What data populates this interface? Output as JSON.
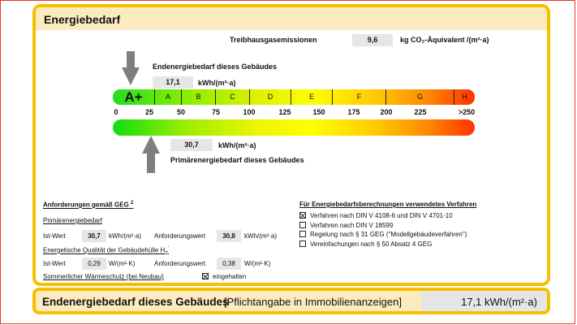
{
  "title": "Energiebedarf",
  "ghg": {
    "label": "Treibhausgasemissionen",
    "value": "9,6",
    "unit": "kg CO₂-Äquivalent /(m²·a)"
  },
  "end": {
    "label": "Endenergiebedarf dieses Gebäudes",
    "value": "17,1",
    "unit": "kWh/(m²·a)"
  },
  "primary": {
    "label": "Primärenergiebedarf dieses Gebäudes",
    "value": "30,7",
    "unit": "kWh/(m²·a)"
  },
  "scale": {
    "classes": [
      "A+",
      "A",
      "B",
      "C",
      "D",
      "E",
      "F",
      "G",
      "H"
    ],
    "ticks": [
      "0",
      "25",
      "50",
      "75",
      "100",
      "125",
      "150",
      "175",
      "200",
      "225",
      ">250"
    ]
  },
  "req": {
    "title": "Anforderungen gemäß GEG",
    "title_sup": "2",
    "primary_title": "Primärenergiebedarf",
    "ist_label": "Ist-Wert",
    "req_label": "Anforderungswert",
    "p_ist": "30,7",
    "p_req": "30,8",
    "p_unit": "kWh/(m²·a)",
    "hull_title": "Energetische Qualität der Gebäudehülle H",
    "hull_sub": "T",
    "hull_sup": "'",
    "h_ist": "0,29",
    "h_req": "0,38",
    "h_unit": "W/(m²·K)",
    "summer": "Sommerlicher Wärmeschutz (bei Neubau)",
    "summer_status": "eingehalten",
    "summer_checked": true
  },
  "methods": {
    "title": "Für Energiebedarfsberechnungen verwendetes Verfahren",
    "items": [
      {
        "label": "Verfahren nach DIN V 4108-6 und DIN V 4701-10",
        "checked": true
      },
      {
        "label": "Verfahren nach DIN V 18599",
        "checked": false
      },
      {
        "label": "Regelung nach § 31 GEG (\"Modellgebäudeverfahren\")",
        "checked": false
      },
      {
        "label": "Vereinfachungen nach § 50 Absatz 4 GEG",
        "checked": false
      }
    ]
  },
  "footer": {
    "label": "Endenergiebedarf dieses Gebäudes",
    "note": "[Pflichtangabe in Immobilienanzeigen]",
    "value": "17,1 kWh/(m²·a)"
  },
  "colors": {
    "border": "#f5c000",
    "header_bg": "#fdebc0"
  }
}
